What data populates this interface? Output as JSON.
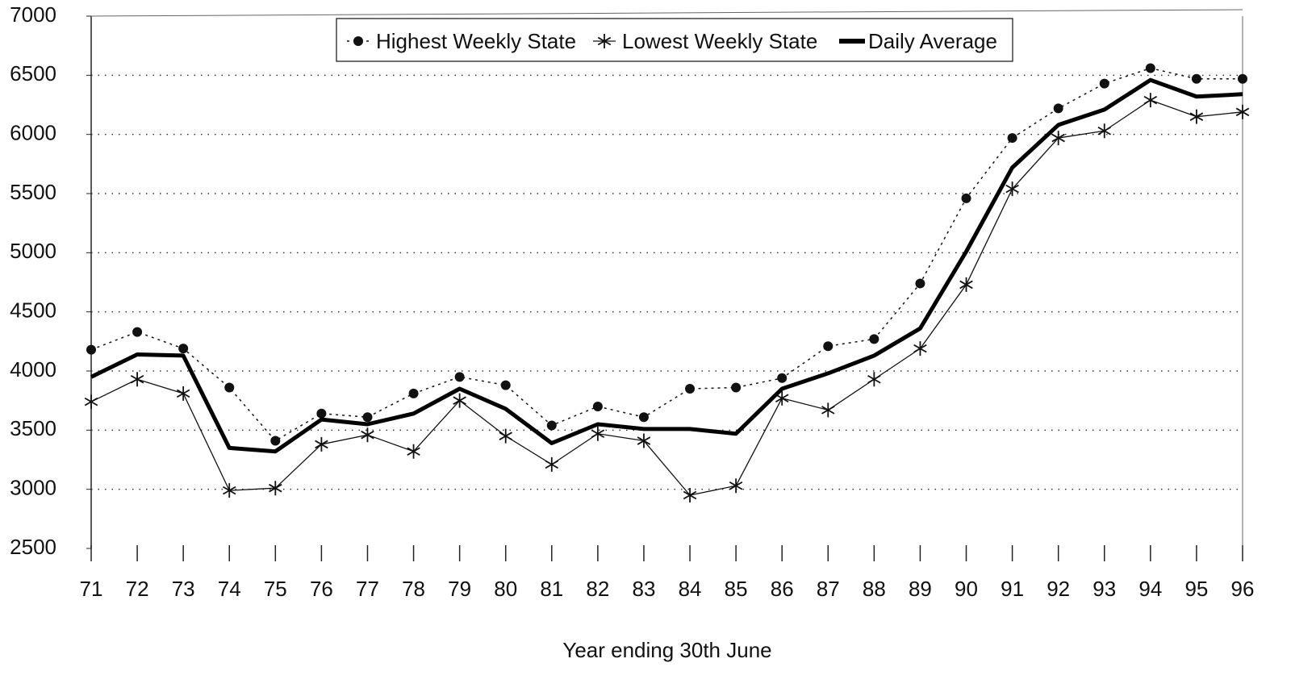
{
  "chart_data": {
    "type": "line",
    "x_label": "Year ending 30th June",
    "categories": [
      "71",
      "72",
      "73",
      "74",
      "75",
      "76",
      "77",
      "78",
      "79",
      "80",
      "81",
      "82",
      "83",
      "84",
      "85",
      "86",
      "87",
      "88",
      "89",
      "90",
      "91",
      "92",
      "93",
      "94",
      "95",
      "96"
    ],
    "series": [
      {
        "name": "Highest Weekly State",
        "color": "#111111",
        "marker": "circle",
        "line": "dotted",
        "values": [
          4180,
          4330,
          4190,
          3860,
          3410,
          3640,
          3610,
          3810,
          3950,
          3880,
          3540,
          3700,
          3610,
          3850,
          3860,
          3940,
          4210,
          4270,
          4740,
          5460,
          5970,
          6220,
          6430,
          6560,
          6470,
          6470
        ]
      },
      {
        "name": "Lowest Weekly State",
        "color": "#111111",
        "marker": "star",
        "line": "thin",
        "values": [
          3740,
          3930,
          3810,
          2990,
          3010,
          3380,
          3460,
          3320,
          3750,
          3450,
          3210,
          3470,
          3410,
          2950,
          3030,
          3770,
          3670,
          3930,
          4190,
          4730,
          5540,
          5970,
          6030,
          6290,
          6150,
          6190
        ]
      },
      {
        "name": "Daily Average",
        "color": "#000000",
        "marker": "none",
        "line": "thick",
        "values": [
          3950,
          4140,
          4130,
          3350,
          3320,
          3590,
          3550,
          3640,
          3850,
          3680,
          3390,
          3550,
          3510,
          3510,
          3470,
          3850,
          3980,
          4130,
          4360,
          5010,
          5720,
          6080,
          6210,
          6460,
          6320,
          6340
        ]
      }
    ],
    "ylim": [
      2500,
      7000
    ],
    "yticks": [
      2500,
      3000,
      3500,
      4000,
      4500,
      5000,
      5500,
      6000,
      6500,
      7000
    ],
    "grid": true
  }
}
